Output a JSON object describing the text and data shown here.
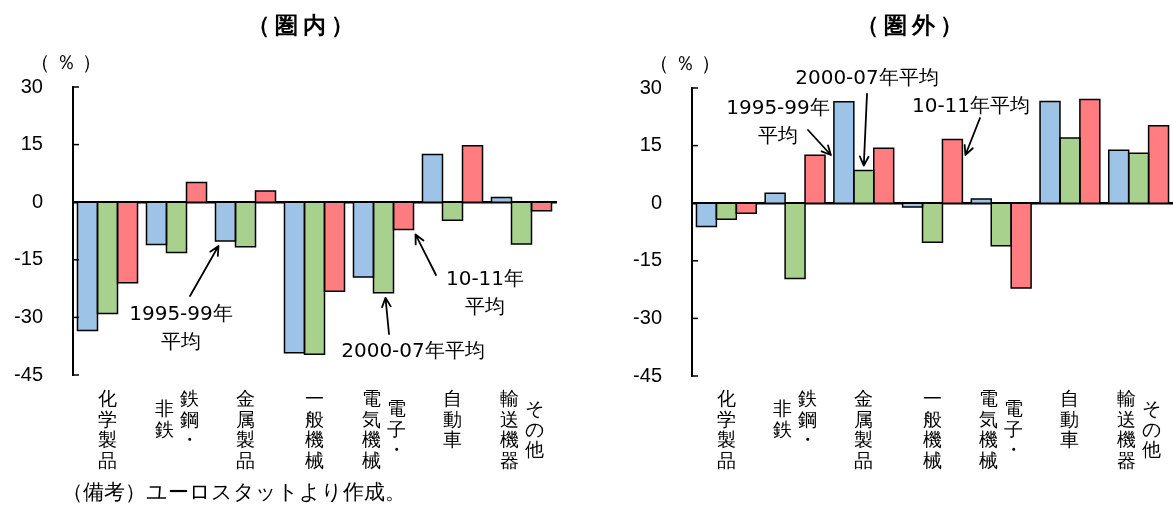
{
  "chart_data": [
    {
      "type": "bar",
      "title": "（圏内）",
      "ylabel": "（％）",
      "categories": [
        "化学製品",
        "鉄鋼・非鉄",
        "金属製品",
        "一般機械",
        "電子・電気機械",
        "自動車",
        "その他輸送機器"
      ],
      "series": [
        {
          "name": "1995-99年平均",
          "color": "#9dc3e6",
          "values": [
            -33.4,
            -11.0,
            -10.1,
            -39.2,
            -19.5,
            12.4,
            1.2
          ]
        },
        {
          "name": "2000-07年平均",
          "color": "#a9d18e",
          "values": [
            -29.0,
            -13.1,
            -11.6,
            -39.6,
            -23.6,
            -4.7,
            -10.9
          ]
        },
        {
          "name": "10-11年平均",
          "color": "#ff7c80",
          "values": [
            -21.0,
            5.1,
            2.9,
            -23.2,
            -7.1,
            14.7,
            -2.2
          ]
        }
      ],
      "ylim": [
        -45,
        30
      ],
      "yticks": [
        -45,
        -30,
        -15,
        0,
        15,
        30
      ],
      "annotations": [
        "（備考）ユーロスタットより作成。"
      ]
    },
    {
      "type": "bar",
      "title": "（圏外）",
      "ylabel": "（％）",
      "categories": [
        "化学製品",
        "鉄鋼・非鉄",
        "金属製品",
        "一般機械",
        "電子・電気機械",
        "自動車",
        "その他輸送機器"
      ],
      "series": [
        {
          "name": "1995-99年平均",
          "color": "#9dc3e6",
          "values": [
            -6.1,
            2.6,
            26.4,
            -1.0,
            1.1,
            26.5,
            13.8
          ]
        },
        {
          "name": "2000-07年平均",
          "color": "#a9d18e",
          "values": [
            -4.2,
            -19.6,
            8.5,
            -10.2,
            -11.1,
            17.0,
            13.0
          ]
        },
        {
          "name": "10-11年平均",
          "color": "#ff7c80",
          "values": [
            -2.6,
            12.5,
            14.3,
            16.6,
            -22.1,
            27.0,
            20.2
          ]
        }
      ],
      "ylim": [
        -45,
        30
      ],
      "yticks": [
        -45,
        -30,
        -15,
        0,
        15,
        30
      ]
    }
  ]
}
